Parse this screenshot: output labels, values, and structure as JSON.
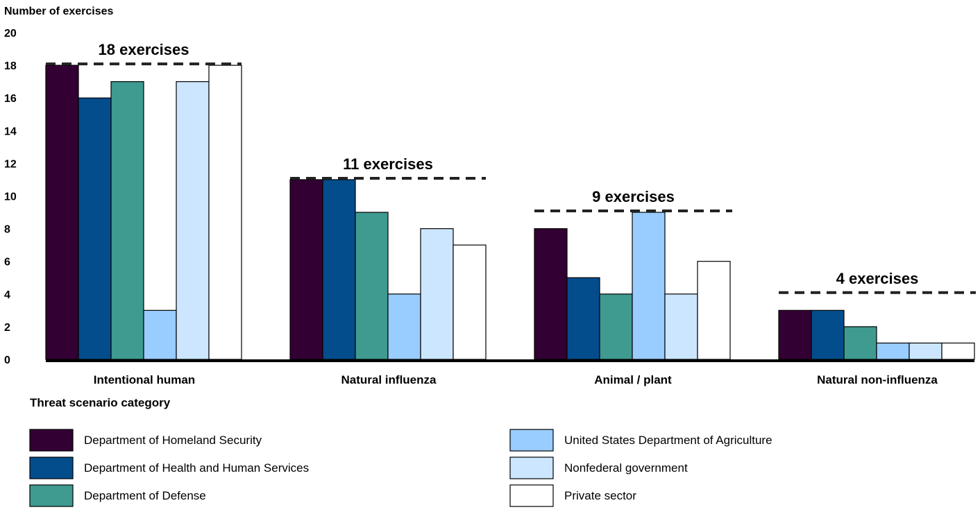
{
  "chart_data": {
    "type": "bar",
    "ylabel": "Number of exercises",
    "xlabel": "Threat scenario category",
    "ylim": [
      0,
      20
    ],
    "yticks": [
      "0",
      "2",
      "4",
      "6",
      "8",
      "10",
      "12",
      "14",
      "16",
      "18",
      "20"
    ],
    "grid": false,
    "legend_placement": "bottom",
    "categories": [
      "Intentional human",
      "Natural influenza",
      "Animal / plant",
      "Natural non-influenza"
    ],
    "series": [
      {
        "name": "Department of Homeland Security",
        "color": "#330033",
        "values": [
          18,
          11,
          8,
          3
        ]
      },
      {
        "name": "Department of Health and Human Services",
        "color": "#044d8c",
        "values": [
          16,
          11,
          5,
          3
        ]
      },
      {
        "name": "Department of Defense",
        "color": "#3f9a90",
        "values": [
          17,
          9,
          4,
          2
        ]
      },
      {
        "name": "United States Department of Agriculture",
        "color": "#99ccff",
        "values": [
          3,
          4,
          9,
          1
        ]
      },
      {
        "name": "Nonfederal government",
        "color": "#cce6ff",
        "values": [
          17,
          8,
          4,
          1
        ]
      },
      {
        "name": "Private sector",
        "color": "#ffffff",
        "values": [
          18,
          7,
          6,
          1
        ]
      }
    ],
    "annotations": [
      {
        "text": "18 exercises",
        "value": 18
      },
      {
        "text": "11 exercises",
        "value": 11
      },
      {
        "text": "9 exercises",
        "value": 9
      },
      {
        "text": "4 exercises",
        "value": 4
      }
    ]
  }
}
